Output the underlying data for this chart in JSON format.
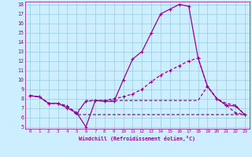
{
  "xlabel": "Windchill (Refroidissement éolien,°C)",
  "bg_color": "#cceeff",
  "line_color": "#990099",
  "grid_color": "#99ccdd",
  "xlim": [
    -0.5,
    23.5
  ],
  "ylim": [
    4.8,
    18.3
  ],
  "xticks": [
    0,
    1,
    2,
    3,
    4,
    5,
    6,
    7,
    8,
    9,
    10,
    11,
    12,
    13,
    14,
    15,
    16,
    17,
    18,
    19,
    20,
    21,
    22,
    23
  ],
  "yticks": [
    5,
    6,
    7,
    8,
    9,
    10,
    11,
    12,
    13,
    14,
    15,
    16,
    17,
    18
  ],
  "line1_x": [
    0,
    1,
    2,
    3,
    4,
    5,
    6,
    7,
    8,
    9,
    10,
    11,
    12,
    13,
    14,
    15,
    16,
    17,
    18,
    19,
    20,
    21,
    22,
    23
  ],
  "line1_y": [
    8.3,
    8.2,
    7.5,
    7.5,
    7.0,
    6.5,
    5.0,
    7.8,
    7.7,
    7.7,
    10.0,
    12.2,
    13.0,
    15.0,
    17.0,
    17.5,
    18.0,
    17.8,
    12.3,
    9.3,
    8.0,
    7.3,
    7.2,
    6.3
  ],
  "line2_x": [
    0,
    1,
    2,
    3,
    4,
    5,
    6,
    7,
    8,
    9,
    10,
    11,
    12,
    13,
    14,
    15,
    16,
    17,
    18,
    19,
    20,
    21,
    22,
    23
  ],
  "line2_y": [
    8.3,
    8.2,
    7.5,
    7.5,
    7.2,
    6.5,
    7.7,
    7.8,
    7.8,
    8.0,
    8.2,
    8.5,
    9.0,
    9.8,
    10.5,
    11.0,
    11.5,
    12.0,
    12.3,
    9.3,
    8.0,
    7.3,
    6.5,
    6.3
  ],
  "line3_x": [
    0,
    1,
    2,
    3,
    4,
    5,
    6,
    7,
    8,
    9,
    10,
    11,
    12,
    13,
    14,
    15,
    16,
    17,
    18,
    19,
    20,
    21,
    22,
    23
  ],
  "line3_y": [
    8.3,
    8.2,
    7.5,
    7.5,
    7.2,
    6.3,
    6.3,
    6.3,
    6.3,
    6.3,
    6.3,
    6.3,
    6.3,
    6.3,
    6.3,
    6.3,
    6.3,
    6.3,
    6.3,
    6.3,
    6.3,
    6.3,
    6.3,
    6.3
  ],
  "line4_x": [
    0,
    1,
    2,
    3,
    4,
    5,
    6,
    7,
    8,
    9,
    10,
    11,
    12,
    13,
    14,
    15,
    16,
    17,
    18,
    19,
    20,
    21,
    22,
    23
  ],
  "line4_y": [
    8.3,
    8.2,
    7.5,
    7.5,
    7.2,
    6.3,
    7.8,
    7.8,
    7.8,
    7.8,
    7.8,
    7.8,
    7.8,
    7.8,
    7.8,
    7.8,
    7.8,
    7.8,
    7.8,
    9.3,
    8.0,
    7.5,
    7.3,
    6.3
  ]
}
